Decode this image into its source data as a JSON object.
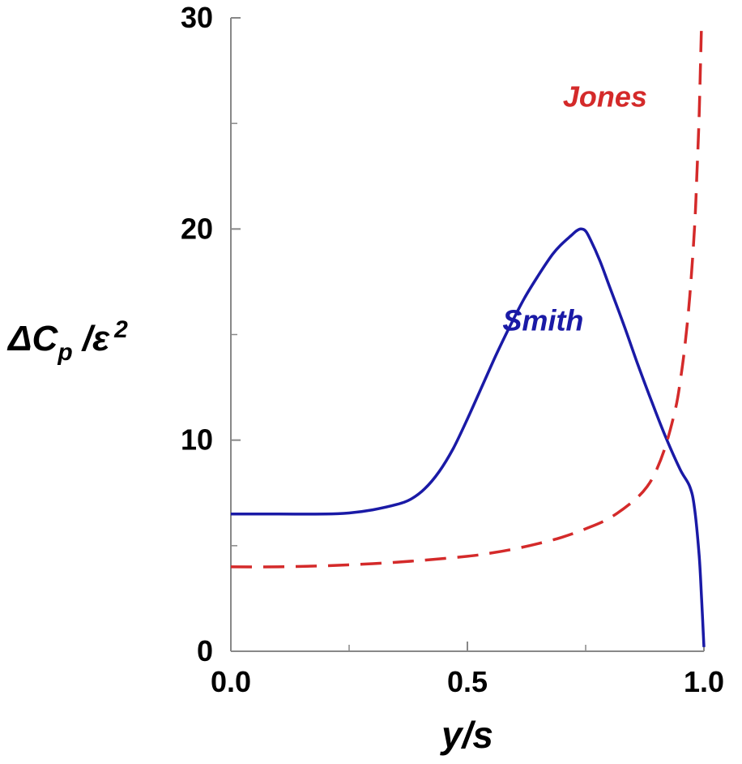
{
  "chart_data": {
    "type": "line",
    "xlabel": "y/s",
    "ylabel": {
      "delta": "Δ",
      "c": "C",
      "sub": "p",
      "slash": " /",
      "eps": "ε",
      "sup": "2"
    },
    "xlim": [
      0,
      1
    ],
    "ylim": [
      0,
      30
    ],
    "x_ticks": [
      0,
      0.5,
      1
    ],
    "x_tick_labels": [
      "0.0",
      "0.5",
      "1.0"
    ],
    "x_minor_ticks": [
      0.25,
      0.75
    ],
    "y_ticks": [
      0,
      10,
      20,
      30
    ],
    "y_tick_labels": [
      "0",
      "10",
      "20",
      "30"
    ],
    "y_minor_ticks": [
      5,
      15,
      25
    ],
    "grid": false,
    "series": [
      {
        "name": "Smith",
        "color": "#1a1aa6",
        "style": "solid",
        "x": [
          0,
          0.1,
          0.2,
          0.25,
          0.3,
          0.35,
          0.38,
          0.41,
          0.44,
          0.47,
          0.5,
          0.53,
          0.56,
          0.59,
          0.62,
          0.65,
          0.68,
          0.7,
          0.72,
          0.73,
          0.74,
          0.75,
          0.76,
          0.78,
          0.8,
          0.83,
          0.86,
          0.89,
          0.92,
          0.95,
          0.97,
          0.98,
          0.99,
          0.995,
          1.0
        ],
        "y": [
          6.5,
          6.5,
          6.5,
          6.55,
          6.7,
          6.95,
          7.2,
          7.7,
          8.5,
          9.6,
          11.0,
          12.5,
          14.0,
          15.4,
          16.7,
          17.8,
          18.8,
          19.3,
          19.7,
          19.9,
          20.0,
          19.9,
          19.5,
          18.5,
          17.3,
          15.5,
          13.6,
          11.8,
          10.1,
          8.6,
          7.8,
          6.8,
          4.5,
          2.5,
          0.2
        ]
      },
      {
        "name": "Jones",
        "color": "#d42a2a",
        "style": "dashed",
        "x": [
          0,
          0.1,
          0.2,
          0.3,
          0.4,
          0.5,
          0.55,
          0.6,
          0.65,
          0.7,
          0.75,
          0.8,
          0.85,
          0.88,
          0.9,
          0.92,
          0.94,
          0.95,
          0.96,
          0.97,
          0.98,
          0.985,
          0.99,
          0.995
        ],
        "y": [
          4.0,
          4.0,
          4.05,
          4.15,
          4.3,
          4.5,
          4.65,
          4.85,
          5.1,
          5.4,
          5.8,
          6.3,
          7.1,
          7.8,
          8.6,
          9.8,
          11.5,
          12.8,
          14.5,
          16.8,
          20.0,
          22.5,
          25.5,
          29.8
        ]
      }
    ],
    "annotations": [
      {
        "text": "Smith",
        "series": "Smith"
      },
      {
        "text": "Jones",
        "series": "Jones"
      }
    ]
  }
}
